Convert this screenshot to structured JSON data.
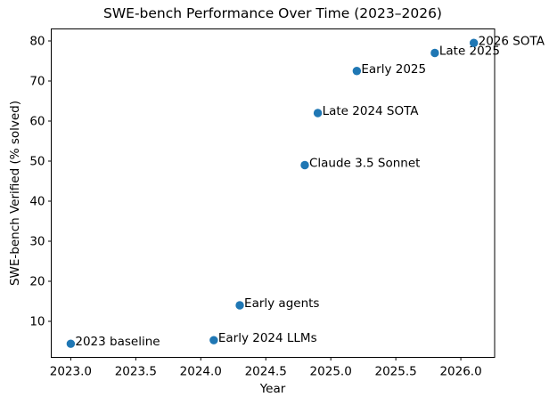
{
  "chart_data": {
    "type": "scatter",
    "title": "SWE-bench Performance Over Time (2023–2026)",
    "xlabel": "Year",
    "ylabel": "SWE-bench Verified (% solved)",
    "xlim": [
      2022.85,
      2026.26
    ],
    "ylim": [
      1,
      83
    ],
    "x_ticks": [
      2023.0,
      2023.5,
      2024.0,
      2024.5,
      2025.0,
      2025.5,
      2026.0
    ],
    "x_tick_labels": [
      "2023.0",
      "2023.5",
      "2024.0",
      "2024.5",
      "2025.0",
      "2025.5",
      "2026.0"
    ],
    "y_ticks": [
      10,
      20,
      30,
      40,
      50,
      60,
      70,
      80
    ],
    "grid": false,
    "legend": "none",
    "marker_color": "#1f77b4",
    "text_color": "#000000",
    "background_color": "#ffffff",
    "points": [
      {
        "label": "2023 baseline",
        "x": 2023.0,
        "y": 4.4
      },
      {
        "label": "Early 2024 LLMs",
        "x": 2024.1,
        "y": 5.3
      },
      {
        "label": "Early agents",
        "x": 2024.3,
        "y": 14
      },
      {
        "label": "Claude 3.5 Sonnet",
        "x": 2024.8,
        "y": 49
      },
      {
        "label": "Late 2024 SOTA",
        "x": 2024.9,
        "y": 62
      },
      {
        "label": "Early 2025",
        "x": 2025.2,
        "y": 72.5
      },
      {
        "label": "Late 2025",
        "x": 2025.8,
        "y": 77
      },
      {
        "label": "2026 SOTA",
        "x": 2026.1,
        "y": 79.5
      }
    ]
  }
}
